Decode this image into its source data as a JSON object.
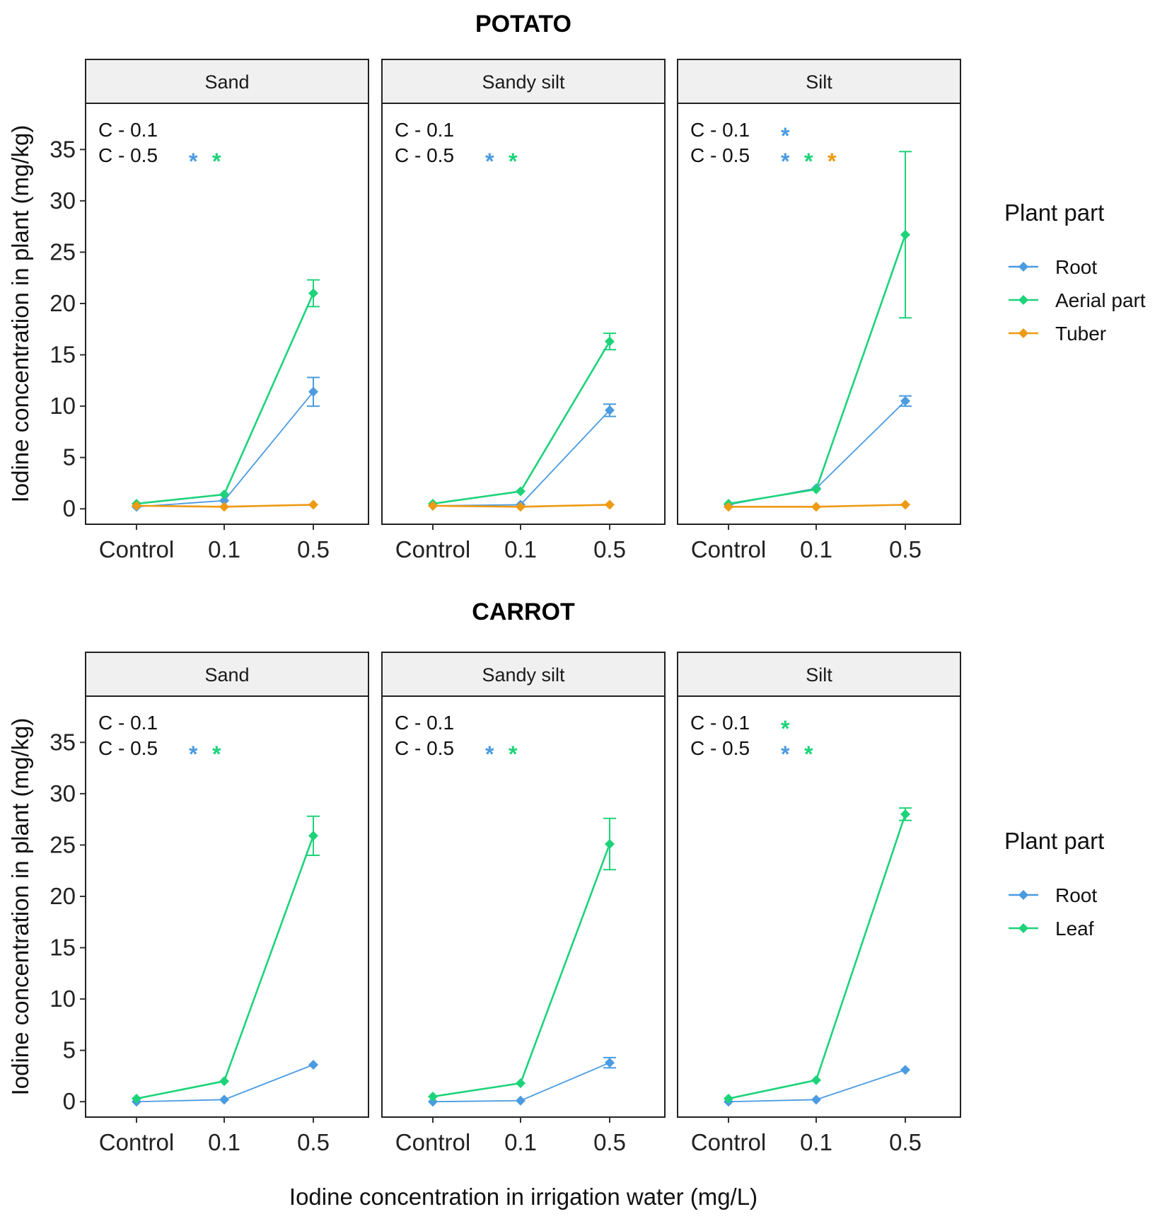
{
  "chart_data": [
    {
      "type": "line",
      "title": "POTATO",
      "ylabel": "Iodine concentration in plant (mg/kg)",
      "ylim": [
        -1.5,
        39.5
      ],
      "yticks": [
        0,
        5,
        10,
        15,
        20,
        25,
        30,
        35
      ],
      "categories": [
        "Control",
        "0.1",
        "0.5"
      ],
      "legend": {
        "title": "Plant part",
        "position": "right",
        "entries": [
          {
            "name": "Root",
            "color": "#4A9BE0"
          },
          {
            "name": "Aerial part",
            "color": "#1DD37A"
          },
          {
            "name": "Tuber",
            "color": "#EE9A12"
          }
        ]
      },
      "panels": [
        {
          "name": "Sand",
          "comparison_labels": [
            "C - 0.1",
            "C - 0.5"
          ],
          "significance": [
            [],
            [
              "#4A9BE0",
              "#1DD37A"
            ]
          ],
          "series": [
            {
              "name": "Root",
              "color": "#4A9BE0",
              "values": [
                0.2,
                0.8,
                11.4
              ],
              "errors": [
                0.1,
                0.2,
                1.4
              ]
            },
            {
              "name": "Aerial part",
              "color": "#1DD37A",
              "values": [
                0.5,
                1.4,
                21.0
              ],
              "errors": [
                0.1,
                0.2,
                1.3
              ]
            },
            {
              "name": "Tuber",
              "color": "#EE9A12",
              "values": [
                0.3,
                0.2,
                0.4
              ],
              "errors": [
                0.05,
                0.05,
                0.05
              ]
            }
          ]
        },
        {
          "name": "Sandy silt",
          "comparison_labels": [
            "C - 0.1",
            "C - 0.5"
          ],
          "significance": [
            [],
            [
              "#4A9BE0",
              "#1DD37A"
            ]
          ],
          "series": [
            {
              "name": "Root",
              "color": "#4A9BE0",
              "values": [
                0.3,
                0.4,
                9.6
              ],
              "errors": [
                0.1,
                0.1,
                0.6
              ]
            },
            {
              "name": "Aerial part",
              "color": "#1DD37A",
              "values": [
                0.5,
                1.7,
                16.3
              ],
              "errors": [
                0.1,
                0.2,
                0.8
              ]
            },
            {
              "name": "Tuber",
              "color": "#EE9A12",
              "values": [
                0.3,
                0.2,
                0.4
              ],
              "errors": [
                0.05,
                0.05,
                0.05
              ]
            }
          ]
        },
        {
          "name": "Silt",
          "comparison_labels": [
            "C - 0.1",
            "C - 0.5"
          ],
          "significance": [
            [
              "#4A9BE0"
            ],
            [
              "#4A9BE0",
              "#1DD37A",
              "#EE9A12"
            ]
          ],
          "series": [
            {
              "name": "Root",
              "color": "#4A9BE0",
              "values": [
                0.4,
                2.0,
                10.5
              ],
              "errors": [
                0.1,
                0.2,
                0.5
              ]
            },
            {
              "name": "Aerial part",
              "color": "#1DD37A",
              "values": [
                0.5,
                1.9,
                26.7
              ],
              "errors": [
                0.1,
                0.2,
                8.1
              ]
            },
            {
              "name": "Tuber",
              "color": "#EE9A12",
              "values": [
                0.2,
                0.2,
                0.4
              ],
              "errors": [
                0.05,
                0.05,
                0.05
              ]
            }
          ]
        }
      ]
    },
    {
      "type": "line",
      "title": "CARROT",
      "ylabel": "Iodine concentration in plant (mg/kg)",
      "xlabel": "Iodine concentration in irrigation water (mg/L)",
      "ylim": [
        -1.5,
        39.5
      ],
      "yticks": [
        0,
        5,
        10,
        15,
        20,
        25,
        30,
        35
      ],
      "categories": [
        "Control",
        "0.1",
        "0.5"
      ],
      "legend": {
        "title": "Plant part",
        "position": "right",
        "entries": [
          {
            "name": "Root",
            "color": "#4A9BE0"
          },
          {
            "name": "Leaf",
            "color": "#1DD37A"
          }
        ]
      },
      "panels": [
        {
          "name": "Sand",
          "comparison_labels": [
            "C - 0.1",
            "C - 0.5"
          ],
          "significance": [
            [],
            [
              "#4A9BE0",
              "#1DD37A"
            ]
          ],
          "series": [
            {
              "name": "Root",
              "color": "#4A9BE0",
              "values": [
                0.0,
                0.2,
                3.6
              ],
              "errors": [
                0.05,
                0.1,
                0.2
              ]
            },
            {
              "name": "Leaf",
              "color": "#1DD37A",
              "values": [
                0.3,
                2.0,
                25.9
              ],
              "errors": [
                0.1,
                0.2,
                1.9
              ]
            }
          ]
        },
        {
          "name": "Sandy silt",
          "comparison_labels": [
            "C - 0.1",
            "C - 0.5"
          ],
          "significance": [
            [],
            [
              "#4A9BE0",
              "#1DD37A"
            ]
          ],
          "series": [
            {
              "name": "Root",
              "color": "#4A9BE0",
              "values": [
                0.0,
                0.1,
                3.8
              ],
              "errors": [
                0.05,
                0.1,
                0.5
              ]
            },
            {
              "name": "Leaf",
              "color": "#1DD37A",
              "values": [
                0.5,
                1.8,
                25.1
              ],
              "errors": [
                0.1,
                0.2,
                2.5
              ]
            }
          ]
        },
        {
          "name": "Silt",
          "comparison_labels": [
            "C - 0.1",
            "C - 0.5"
          ],
          "significance": [
            [
              "#1DD37A"
            ],
            [
              "#4A9BE0",
              "#1DD37A"
            ]
          ],
          "series": [
            {
              "name": "Root",
              "color": "#4A9BE0",
              "values": [
                0.0,
                0.2,
                3.1
              ],
              "errors": [
                0.05,
                0.1,
                0.2
              ]
            },
            {
              "name": "Leaf",
              "color": "#1DD37A",
              "values": [
                0.3,
                2.1,
                28.0
              ],
              "errors": [
                0.1,
                0.2,
                0.6
              ]
            }
          ]
        }
      ]
    }
  ]
}
